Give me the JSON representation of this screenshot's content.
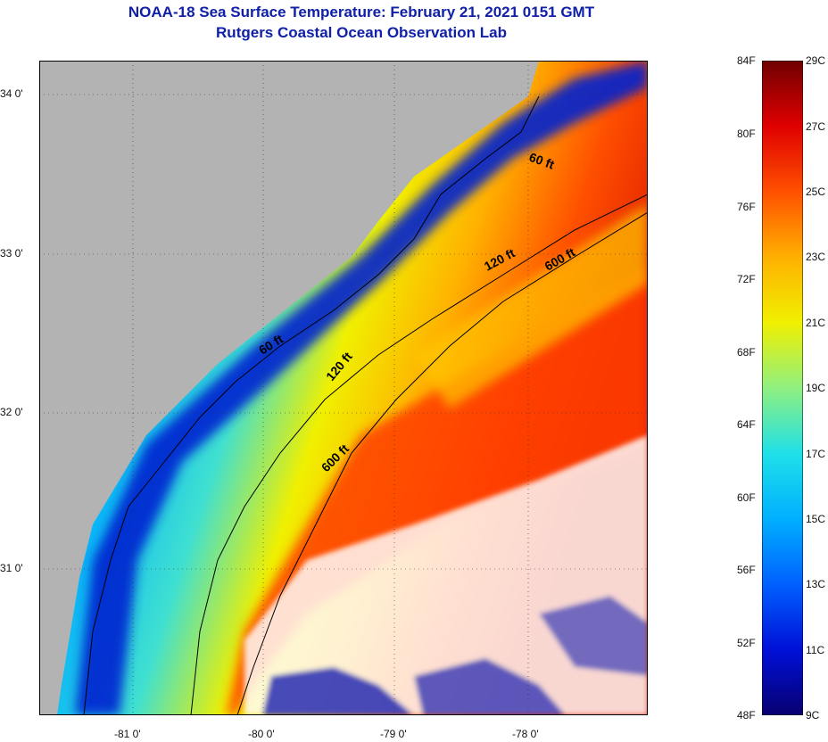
{
  "title": "NOAA-18 Sea Surface Temperature:  February 21, 2021 0151 GMT",
  "subtitle": "Rutgers Coastal Ocean Observation Lab",
  "lat_labels": [
    "34 0'",
    "33 0'",
    "32 0'",
    "31 0'"
  ],
  "lon_labels": [
    "-81 0'",
    "-80 0'",
    "-79 0'",
    "-78 0'"
  ],
  "contour_labels": [
    "60 ft",
    "120 ft",
    "600 ft"
  ],
  "colorbar": {
    "fahrenheit": [
      "84F",
      "80F",
      "76F",
      "72F",
      "68F",
      "64F",
      "60F",
      "56F",
      "52F",
      "48F"
    ],
    "celsius": [
      "29C",
      "27C",
      "25C",
      "23C",
      "21C",
      "19C",
      "17C",
      "15C",
      "13C",
      "11C",
      "9C"
    ]
  },
  "colors": {
    "land": "#b3b3b3",
    "cloud": "#ffffff",
    "title": "#1020a8",
    "scale": [
      "#080070",
      "#0010d8",
      "#0060ff",
      "#00b0ff",
      "#20e0e8",
      "#90f080",
      "#f0f000",
      "#ffb000",
      "#ff5000",
      "#e00000",
      "#700000"
    ]
  }
}
